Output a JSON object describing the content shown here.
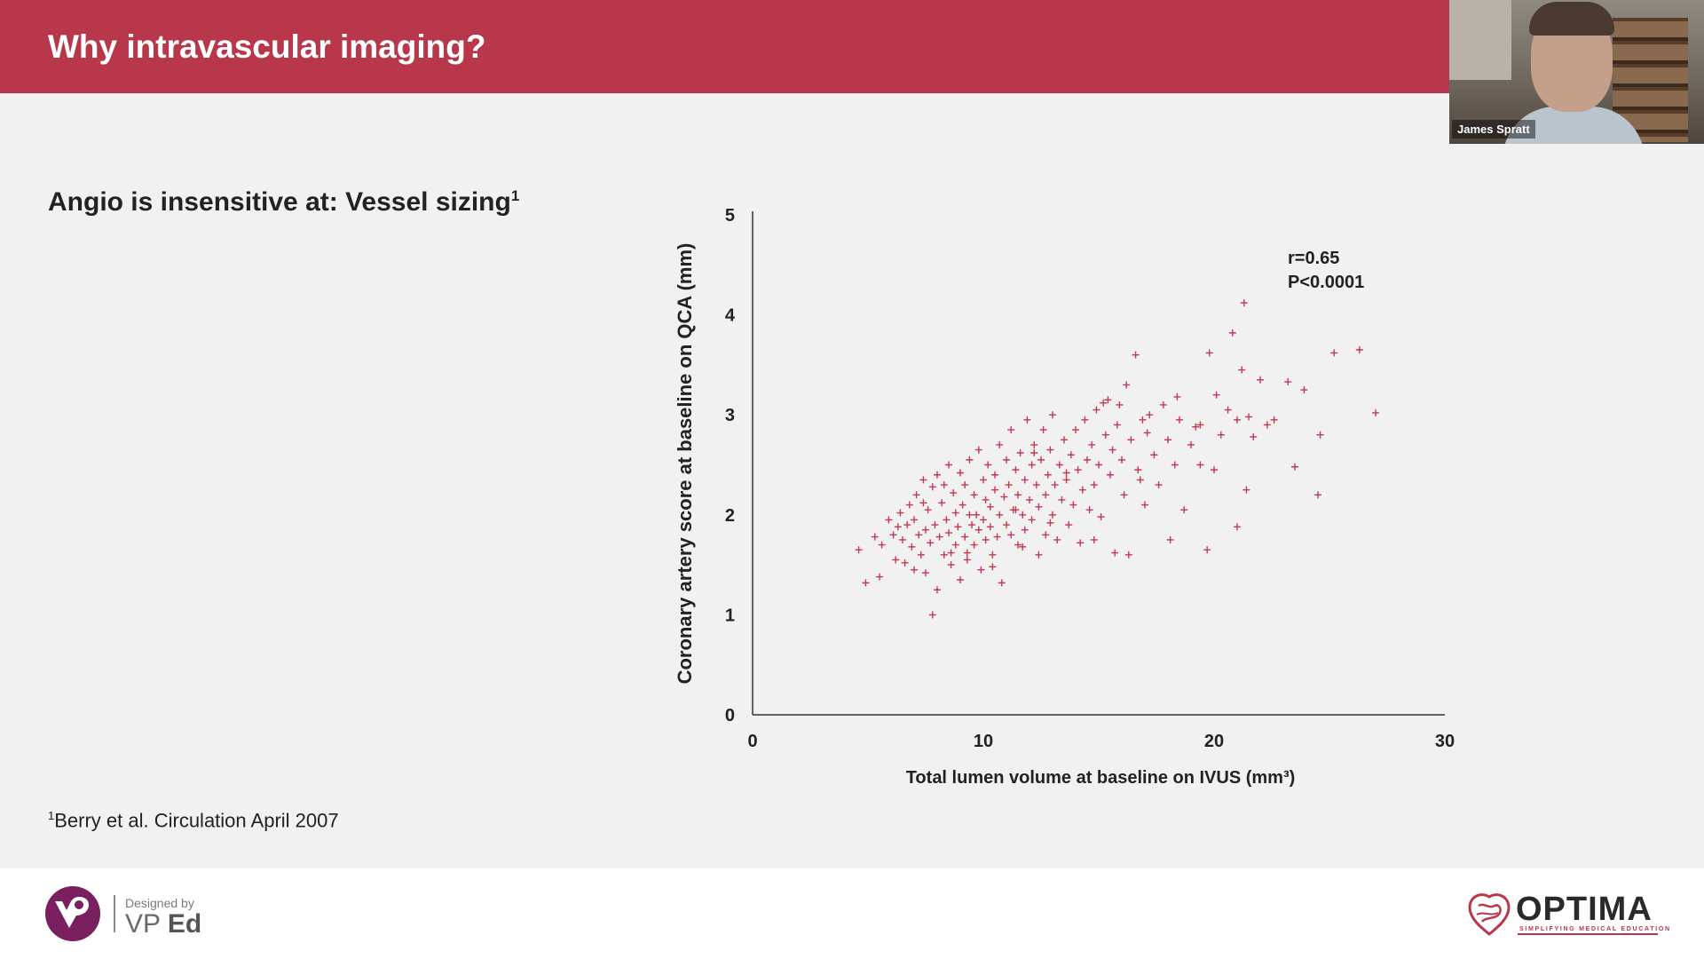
{
  "header": {
    "title": "Why intravascular imaging?"
  },
  "video": {
    "participant_name": "James Spratt"
  },
  "slide": {
    "subtitle": "Angio is insensitive at: Vessel sizing",
    "subtitle_sup": "1",
    "reference_sup": "1",
    "reference": "Berry et al. Circulation April 2007"
  },
  "chart_data": {
    "type": "scatter",
    "xlabel": "Total lumen volume at baseline on IVUS (mm³)",
    "ylabel": "Coronary artery score at baseline on QCA (mm)",
    "xlim": [
      0,
      30
    ],
    "ylim": [
      0,
      5
    ],
    "xticks": [
      0,
      10,
      20,
      30
    ],
    "yticks": [
      0,
      1,
      2,
      3,
      4,
      5
    ],
    "annotation": [
      "r=0.65",
      "P<0.0001"
    ],
    "marker": "+",
    "color": "#c23a50",
    "grid": false,
    "points": [
      [
        4.6,
        1.65
      ],
      [
        4.9,
        1.32
      ],
      [
        5.3,
        1.78
      ],
      [
        5.5,
        1.38
      ],
      [
        5.6,
        1.7
      ],
      [
        5.9,
        1.95
      ],
      [
        6.1,
        1.8
      ],
      [
        6.2,
        1.55
      ],
      [
        6.4,
        2.02
      ],
      [
        6.5,
        1.75
      ],
      [
        6.6,
        1.52
      ],
      [
        6.7,
        1.9
      ],
      [
        6.8,
        2.1
      ],
      [
        6.9,
        1.68
      ],
      [
        7.0,
        1.45
      ],
      [
        7.0,
        1.95
      ],
      [
        7.1,
        2.2
      ],
      [
        7.2,
        1.8
      ],
      [
        7.3,
        1.6
      ],
      [
        7.4,
        2.35
      ],
      [
        7.5,
        1.85
      ],
      [
        7.5,
        1.42
      ],
      [
        7.6,
        2.05
      ],
      [
        7.7,
        1.72
      ],
      [
        7.8,
        2.28
      ],
      [
        7.8,
        1.0
      ],
      [
        7.9,
        1.9
      ],
      [
        8.0,
        1.25
      ],
      [
        8.0,
        2.4
      ],
      [
        8.1,
        1.78
      ],
      [
        8.2,
        2.12
      ],
      [
        8.3,
        1.6
      ],
      [
        8.3,
        2.3
      ],
      [
        8.4,
        1.95
      ],
      [
        8.5,
        1.82
      ],
      [
        8.5,
        2.5
      ],
      [
        8.6,
        1.5
      ],
      [
        8.7,
        2.22
      ],
      [
        8.8,
        1.7
      ],
      [
        8.8,
        2.02
      ],
      [
        8.9,
        1.88
      ],
      [
        9.0,
        2.42
      ],
      [
        9.0,
        1.35
      ],
      [
        9.1,
        2.1
      ],
      [
        9.2,
        1.78
      ],
      [
        9.2,
        2.3
      ],
      [
        9.3,
        1.62
      ],
      [
        9.4,
        2.0
      ],
      [
        9.4,
        2.55
      ],
      [
        9.5,
        1.9
      ],
      [
        9.6,
        1.7
      ],
      [
        9.6,
        2.2
      ],
      [
        9.7,
        2.0
      ],
      [
        9.8,
        1.85
      ],
      [
        9.8,
        2.65
      ],
      [
        9.9,
        1.45
      ],
      [
        10.0,
        2.35
      ],
      [
        10.0,
        1.95
      ],
      [
        10.1,
        1.75
      ],
      [
        10.1,
        2.15
      ],
      [
        10.2,
        2.5
      ],
      [
        10.3,
        1.88
      ],
      [
        10.3,
        2.08
      ],
      [
        10.4,
        1.6
      ],
      [
        10.5,
        2.4
      ],
      [
        10.5,
        2.25
      ],
      [
        10.6,
        1.78
      ],
      [
        10.7,
        2.0
      ],
      [
        10.7,
        2.7
      ],
      [
        10.8,
        1.32
      ],
      [
        10.9,
        2.18
      ],
      [
        11.0,
        1.9
      ],
      [
        11.0,
        2.55
      ],
      [
        11.1,
        2.3
      ],
      [
        11.2,
        1.8
      ],
      [
        11.2,
        2.85
      ],
      [
        11.3,
        2.05
      ],
      [
        11.4,
        2.45
      ],
      [
        11.5,
        1.7
      ],
      [
        11.5,
        2.2
      ],
      [
        11.6,
        2.62
      ],
      [
        11.7,
        2.0
      ],
      [
        11.8,
        2.35
      ],
      [
        11.8,
        1.85
      ],
      [
        11.9,
        2.95
      ],
      [
        12.0,
        2.15
      ],
      [
        12.1,
        2.5
      ],
      [
        12.1,
        1.95
      ],
      [
        12.2,
        2.7
      ],
      [
        12.3,
        2.3
      ],
      [
        12.4,
        1.6
      ],
      [
        12.4,
        2.08
      ],
      [
        12.5,
        2.55
      ],
      [
        12.6,
        2.85
      ],
      [
        12.7,
        2.2
      ],
      [
        12.7,
        1.8
      ],
      [
        12.8,
        2.4
      ],
      [
        12.9,
        2.65
      ],
      [
        13.0,
        2.0
      ],
      [
        13.0,
        3.0
      ],
      [
        13.1,
        2.3
      ],
      [
        13.2,
        1.75
      ],
      [
        13.3,
        2.5
      ],
      [
        13.4,
        2.15
      ],
      [
        13.5,
        2.75
      ],
      [
        13.6,
        2.35
      ],
      [
        13.7,
        1.9
      ],
      [
        13.8,
        2.6
      ],
      [
        13.9,
        2.1
      ],
      [
        14.0,
        2.85
      ],
      [
        14.1,
        2.45
      ],
      [
        14.2,
        1.72
      ],
      [
        14.3,
        2.25
      ],
      [
        14.4,
        2.95
      ],
      [
        14.5,
        2.55
      ],
      [
        14.6,
        2.05
      ],
      [
        14.7,
        2.7
      ],
      [
        14.8,
        2.3
      ],
      [
        14.9,
        3.05
      ],
      [
        15.0,
        2.5
      ],
      [
        15.1,
        1.98
      ],
      [
        15.3,
        2.8
      ],
      [
        15.4,
        3.15
      ],
      [
        15.5,
        2.4
      ],
      [
        15.6,
        2.65
      ],
      [
        15.7,
        1.62
      ],
      [
        15.8,
        2.9
      ],
      [
        15.9,
        3.1
      ],
      [
        16.0,
        2.55
      ],
      [
        16.1,
        2.2
      ],
      [
        16.2,
        3.3
      ],
      [
        16.3,
        1.6
      ],
      [
        16.4,
        2.75
      ],
      [
        16.6,
        3.6
      ],
      [
        16.7,
        2.45
      ],
      [
        16.9,
        2.95
      ],
      [
        17.0,
        2.1
      ],
      [
        17.2,
        3.0
      ],
      [
        17.4,
        2.6
      ],
      [
        17.6,
        2.3
      ],
      [
        17.8,
        3.1
      ],
      [
        18.0,
        2.75
      ],
      [
        18.1,
        1.75
      ],
      [
        18.3,
        2.5
      ],
      [
        18.5,
        2.95
      ],
      [
        18.7,
        2.05
      ],
      [
        19.0,
        2.7
      ],
      [
        19.2,
        2.88
      ],
      [
        19.4,
        2.5
      ],
      [
        19.7,
        1.65
      ],
      [
        19.8,
        3.62
      ],
      [
        20.0,
        2.45
      ],
      [
        20.1,
        3.2
      ],
      [
        20.3,
        2.8
      ],
      [
        20.6,
        3.05
      ],
      [
        21.0,
        1.88
      ],
      [
        21.0,
        2.95
      ],
      [
        21.2,
        3.45
      ],
      [
        21.3,
        4.12
      ],
      [
        21.4,
        2.25
      ],
      [
        21.5,
        2.98
      ],
      [
        21.7,
        2.78
      ],
      [
        22.0,
        3.35
      ],
      [
        22.3,
        2.9
      ],
      [
        22.6,
        2.95
      ],
      [
        23.2,
        3.33
      ],
      [
        23.5,
        2.48
      ],
      [
        23.9,
        3.25
      ],
      [
        24.5,
        2.2
      ],
      [
        24.6,
        2.8
      ],
      [
        25.2,
        3.62
      ],
      [
        26.3,
        3.65
      ],
      [
        27.0,
        3.02
      ],
      [
        20.8,
        3.82
      ],
      [
        18.4,
        3.18
      ],
      [
        17.1,
        2.82
      ],
      [
        15.2,
        3.12
      ],
      [
        13.6,
        2.42
      ],
      [
        12.9,
        1.92
      ],
      [
        11.7,
        1.68
      ],
      [
        10.4,
        1.48
      ],
      [
        9.3,
        1.55
      ],
      [
        8.6,
        1.62
      ],
      [
        7.4,
        2.12
      ],
      [
        6.3,
        1.88
      ],
      [
        12.2,
        2.62
      ],
      [
        14.8,
        1.75
      ],
      [
        16.8,
        2.35
      ],
      [
        19.4,
        2.9
      ],
      [
        11.4,
        2.05
      ]
    ]
  },
  "footer": {
    "designed_by": "Designed by",
    "vp_brand_a": "VP",
    "vp_brand_b": "Ed",
    "optima_word": "OPTIMA",
    "optima_tagline": "SIMPLIFYING MEDICAL EDUCATION"
  },
  "colors": {
    "header": "#b8374b",
    "marker": "#c23a50",
    "vp_purple": "#7a1f5f"
  }
}
